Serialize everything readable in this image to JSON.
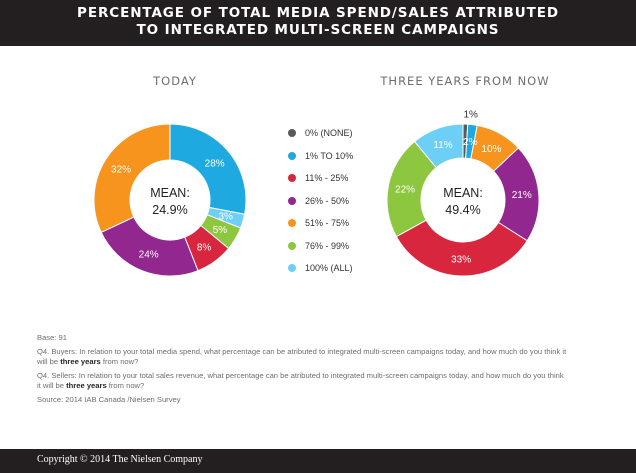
{
  "header": {
    "title_line1": "PERCENTAGE OF TOTAL MEDIA SPEND/SALES ATTRIBUTED",
    "title_line2": "TO INTEGRATED MULTI-SCREEN CAMPAIGNS"
  },
  "chart_data": [
    {
      "type": "pie",
      "title": "TODAY",
      "center_label": "MEAN:",
      "center_value": "24.9%",
      "slices": [
        {
          "category": "0% (NONE)",
          "value": 0,
          "label": "",
          "color": "#58595b"
        },
        {
          "category": "1% TO 10%",
          "value": 28,
          "label": "28%",
          "color": "#1fa9e1"
        },
        {
          "category": "100% (ALL)",
          "value": 3,
          "label": "3%",
          "color": "#6dcff6"
        },
        {
          "category": "76% - 99%",
          "value": 5,
          "label": "5%",
          "color": "#8dc63f"
        },
        {
          "category": "11% - 25%",
          "value": 8,
          "label": "8%",
          "color": "#d7263d"
        },
        {
          "category": "26% - 50%",
          "value": 24,
          "label": "24%",
          "color": "#92278f"
        },
        {
          "category": "51% - 75%",
          "value": 32,
          "label": "32%",
          "color": "#f7941d"
        }
      ]
    },
    {
      "type": "pie",
      "title": "THREE YEARS FROM NOW",
      "center_label": "MEAN:",
      "center_value": "49.4%",
      "slices": [
        {
          "category": "0% (NONE)",
          "value": 1,
          "label": "1%",
          "color": "#58595b"
        },
        {
          "category": "1% TO 10%",
          "value": 2,
          "label": "2%",
          "color": "#1fa9e1"
        },
        {
          "category": "51% - 75%",
          "value": 10,
          "label": "10%",
          "color": "#f7941d"
        },
        {
          "category": "26% - 50%",
          "value": 21,
          "label": "21%",
          "color": "#92278f"
        },
        {
          "category": "11% - 25%",
          "value": 33,
          "label": "33%",
          "color": "#d7263d"
        },
        {
          "category": "76% - 99%",
          "value": 22,
          "label": "22%",
          "color": "#8dc63f"
        },
        {
          "category": "100% (ALL)",
          "value": 11,
          "label": "11%",
          "color": "#6dcff6"
        }
      ]
    }
  ],
  "legend": [
    {
      "label": "0% (NONE)",
      "color": "#58595b"
    },
    {
      "label": "1% TO 10%",
      "color": "#1fa9e1"
    },
    {
      "label": "11% - 25%",
      "color": "#d7263d"
    },
    {
      "label": "26% - 50%",
      "color": "#92278f"
    },
    {
      "label": "51% - 75%",
      "color": "#f7941d"
    },
    {
      "label": "76% - 99%",
      "color": "#8dc63f"
    },
    {
      "label": "100% (ALL)",
      "color": "#6dcff6"
    }
  ],
  "notes": {
    "base": "Base: 91",
    "q4_buyers_text": "Q4. Buyers: In relation to your total media spend, what percentage can be atributed to integrated multi-screen campaigns today, and how much do you think it will be",
    "q4_buyers_bold": "three years",
    "q4_buyers_end": "from now?",
    "q4_sellers_text": "Q4. Sellers: In relation to your total sales revenue, what percentage can be atributed to integrated multi-screen campaigns today, and how much do you think it will be",
    "q4_sellers_bold": "three years",
    "q4_sellers_end": "from now?",
    "source": "Source: 2014 IAB Canada /Nielsen Survey"
  },
  "footer": {
    "copyright": "Copyright © 2014 The Nielsen Company"
  }
}
